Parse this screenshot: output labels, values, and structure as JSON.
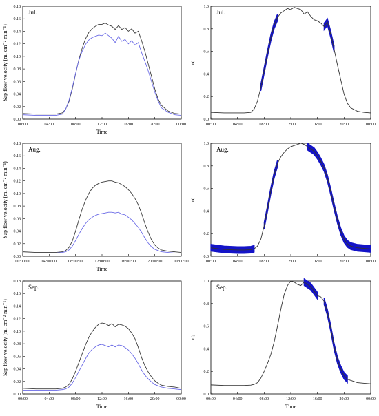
{
  "chart_data": [
    {
      "panel": "Jul. sap flow",
      "type": "line",
      "label": "Jul.",
      "xlabel": "Time",
      "ylabel": "Sap flow velocity (ml cm⁻² min⁻¹)",
      "xlim": [
        0,
        24
      ],
      "ylim": [
        0,
        0.18
      ],
      "xticks": [
        0,
        4,
        8,
        12,
        16,
        20,
        24
      ],
      "xtick_labels": [
        "00:00",
        "04:00",
        "08:00",
        "12:00",
        "16:00",
        "20:00",
        "00:00"
      ],
      "yticks": [
        0,
        0.02,
        0.04,
        0.06,
        0.08,
        0.1,
        0.12,
        0.14,
        0.16,
        0.18
      ],
      "ytick_labels": [
        "0.00",
        "0.02",
        "0.04",
        "0.06",
        "0.08",
        "0.10",
        "0.12",
        "0.14",
        "0.16",
        "0.18"
      ],
      "x": [
        0,
        2,
        4,
        5,
        6,
        6.5,
        7,
        7.5,
        8,
        8.5,
        9,
        9.5,
        10,
        10.5,
        11,
        11.5,
        12,
        12.5,
        13,
        13.5,
        14,
        14.5,
        15,
        15.5,
        16,
        16.5,
        17,
        17.5,
        18,
        18.5,
        19,
        19.5,
        20,
        20.5,
        21,
        22,
        23,
        24
      ],
      "series": [
        {
          "color": "#3a3a3a",
          "values": [
            0.009,
            0.008,
            0.008,
            0.008,
            0.01,
            0.016,
            0.028,
            0.048,
            0.072,
            0.095,
            0.113,
            0.128,
            0.138,
            0.144,
            0.148,
            0.151,
            0.151,
            0.153,
            0.15,
            0.148,
            0.143,
            0.149,
            0.143,
            0.146,
            0.14,
            0.144,
            0.137,
            0.14,
            0.125,
            0.108,
            0.088,
            0.068,
            0.048,
            0.032,
            0.022,
            0.013,
            0.009,
            0.008
          ]
        },
        {
          "color": "#6a6ae6",
          "values": [
            0.007,
            0.006,
            0.006,
            0.006,
            0.008,
            0.016,
            0.03,
            0.05,
            0.073,
            0.094,
            0.108,
            0.119,
            0.126,
            0.13,
            0.132,
            0.134,
            0.133,
            0.137,
            0.133,
            0.129,
            0.122,
            0.132,
            0.124,
            0.127,
            0.12,
            0.125,
            0.118,
            0.122,
            0.106,
            0.092,
            0.077,
            0.06,
            0.043,
            0.029,
            0.018,
            0.011,
            0.007,
            0.006
          ]
        }
      ]
    },
    {
      "panel": "Jul. sigma",
      "type": "line",
      "label": "Jul.",
      "xlabel": "",
      "ylabel": "σᵢ",
      "xlim": [
        0,
        24
      ],
      "ylim": [
        0,
        1
      ],
      "xticks": [
        0,
        4,
        8,
        12,
        16,
        20,
        24
      ],
      "xtick_labels": [
        "00:00",
        "04:00",
        "08:00",
        "12:00",
        "16:00",
        "20:00",
        "00:00"
      ],
      "yticks": [
        0,
        0.2,
        0.4,
        0.6,
        0.8,
        1
      ],
      "ytick_labels": [
        "0.0",
        "0.2",
        "0.4",
        "0.6",
        "0.8",
        "1.0"
      ],
      "x": [
        0,
        2,
        4,
        5,
        6,
        6.5,
        7,
        7.5,
        8,
        8.5,
        9,
        9.5,
        10,
        10.5,
        11,
        11.5,
        12,
        12.5,
        13,
        13.5,
        14,
        14.5,
        15,
        15.5,
        16,
        16.5,
        17,
        17.5,
        18,
        18.5,
        19,
        19.5,
        20,
        20.5,
        21,
        22,
        23,
        24
      ],
      "series": [
        {
          "color": "#333333",
          "values": [
            0.06,
            0.055,
            0.055,
            0.055,
            0.06,
            0.09,
            0.16,
            0.28,
            0.43,
            0.58,
            0.72,
            0.83,
            0.9,
            0.94,
            0.96,
            0.98,
            0.97,
            0.99,
            0.98,
            0.97,
            0.93,
            0.95,
            0.91,
            0.88,
            0.87,
            0.85,
            0.82,
            0.86,
            0.75,
            0.62,
            0.48,
            0.35,
            0.22,
            0.14,
            0.1,
            0.07,
            0.06,
            0.055
          ]
        }
      ],
      "band": {
        "color": "#1414c8",
        "ranges": [
          [
            7.3,
            10.2
          ],
          [
            16.8,
            18.7
          ]
        ],
        "thickness": 0.03
      }
    },
    {
      "panel": "Aug. sap flow",
      "type": "line",
      "label": "Aug.",
      "xlabel": "Time",
      "ylabel": "Sap flow velocity (ml cm⁻² min⁻¹)",
      "xlim": [
        0,
        24
      ],
      "ylim": [
        0,
        0.18
      ],
      "xticks": [
        0,
        4,
        8,
        12,
        16,
        20,
        24
      ],
      "xtick_labels": [
        "00:00:00",
        "04:00:00",
        "08:00:00",
        "12:00:00",
        "16:00:00",
        "20:00:00",
        "00:00:00"
      ],
      "yticks": [
        0,
        0.02,
        0.04,
        0.06,
        0.08,
        0.1,
        0.12,
        0.14,
        0.16,
        0.18
      ],
      "ytick_labels": [
        "0.00",
        "0.02",
        "0.04",
        "0.06",
        "0.08",
        "0.10",
        "0.12",
        "0.14",
        "0.16",
        "0.18"
      ],
      "x": [
        0,
        2,
        4,
        5,
        6,
        6.5,
        7,
        7.5,
        8,
        8.5,
        9,
        9.5,
        10,
        10.5,
        11,
        11.5,
        12,
        12.5,
        13,
        13.5,
        14,
        14.5,
        15,
        15.5,
        16,
        16.5,
        17,
        17.5,
        18,
        18.5,
        19,
        19.5,
        20,
        20.5,
        21,
        22,
        23,
        24
      ],
      "series": [
        {
          "color": "#3a3a3a",
          "values": [
            0.007,
            0.006,
            0.006,
            0.006,
            0.007,
            0.009,
            0.014,
            0.024,
            0.04,
            0.058,
            0.075,
            0.089,
            0.1,
            0.108,
            0.113,
            0.116,
            0.118,
            0.119,
            0.12,
            0.12,
            0.118,
            0.117,
            0.114,
            0.111,
            0.106,
            0.1,
            0.092,
            0.082,
            0.068,
            0.052,
            0.038,
            0.026,
            0.018,
            0.013,
            0.01,
            0.008,
            0.007,
            0.006
          ]
        },
        {
          "color": "#6a6ae6",
          "values": [
            0.005,
            0.005,
            0.005,
            0.005,
            0.006,
            0.007,
            0.01,
            0.016,
            0.025,
            0.035,
            0.044,
            0.052,
            0.058,
            0.062,
            0.065,
            0.067,
            0.068,
            0.069,
            0.07,
            0.07,
            0.069,
            0.07,
            0.067,
            0.066,
            0.062,
            0.058,
            0.052,
            0.046,
            0.038,
            0.029,
            0.021,
            0.015,
            0.011,
            0.009,
            0.007,
            0.006,
            0.005,
            0.005
          ]
        }
      ]
    },
    {
      "panel": "Aug. sigma",
      "type": "line",
      "label": "Aug.",
      "xlabel": "",
      "ylabel": "σᵢ",
      "xlim": [
        0,
        24
      ],
      "ylim": [
        0,
        1
      ],
      "xticks": [
        0,
        4,
        8,
        12,
        16,
        20,
        24
      ],
      "xtick_labels": [
        "00:00",
        "04:00",
        "08:00",
        "12:00",
        "16:00",
        "20:00",
        "00:00"
      ],
      "yticks": [
        0,
        0.2,
        0.4,
        0.6,
        0.8,
        1
      ],
      "ytick_labels": [
        "0.0",
        "0.2",
        "0.4",
        "0.6",
        "0.8",
        "1.0"
      ],
      "x": [
        0,
        2,
        4,
        5,
        6,
        6.5,
        7,
        7.5,
        8,
        8.5,
        9,
        9.5,
        10,
        10.5,
        11,
        11.5,
        12,
        12.5,
        13,
        13.5,
        14,
        14.5,
        15,
        15.5,
        16,
        16.5,
        17,
        17.5,
        18,
        18.5,
        19,
        19.5,
        20,
        20.5,
        21,
        22,
        23,
        24
      ],
      "series": [
        {
          "color": "#333333",
          "values": [
            0.075,
            0.06,
            0.055,
            0.055,
            0.058,
            0.066,
            0.09,
            0.15,
            0.27,
            0.42,
            0.58,
            0.72,
            0.82,
            0.88,
            0.92,
            0.95,
            0.97,
            0.98,
            0.99,
            1.0,
            0.99,
            0.97,
            0.95,
            0.93,
            0.89,
            0.84,
            0.78,
            0.69,
            0.57,
            0.44,
            0.32,
            0.22,
            0.15,
            0.11,
            0.09,
            0.075,
            0.07,
            0.065
          ]
        }
      ],
      "band": {
        "color": "#1414c8",
        "ranges": [
          [
            0,
            6.8
          ],
          [
            7.8,
            10.2
          ],
          [
            14.5,
            24
          ]
        ],
        "thickness": 0.03
      }
    },
    {
      "panel": "Sep. sap flow",
      "type": "line",
      "label": "Sep.",
      "xlabel": "Time",
      "ylabel": "Sap flow velocity (ml cm⁻² min⁻¹)",
      "xlim": [
        0,
        24
      ],
      "ylim": [
        0,
        0.18
      ],
      "xticks": [
        0,
        4,
        8,
        12,
        16,
        20,
        24
      ],
      "xtick_labels": [
        "00:00",
        "04:00",
        "08:00",
        "12:00",
        "16:00",
        "20:00",
        "00:00"
      ],
      "yticks": [
        0,
        0.02,
        0.04,
        0.06,
        0.08,
        0.1,
        0.12,
        0.14,
        0.16,
        0.18
      ],
      "ytick_labels": [
        "0.00",
        "0.02",
        "0.04",
        "0.06",
        "0.08",
        "0.10",
        "0.12",
        "0.14",
        "0.16",
        "0.18"
      ],
      "x": [
        0,
        2,
        4,
        5,
        6,
        6.5,
        7,
        7.5,
        8,
        8.5,
        9,
        9.5,
        10,
        10.5,
        11,
        11.5,
        12,
        12.5,
        13,
        13.5,
        14,
        14.5,
        15,
        15.5,
        16,
        16.5,
        17,
        17.5,
        18,
        18.5,
        19,
        19.5,
        20,
        20.5,
        21,
        22,
        23,
        24
      ],
      "series": [
        {
          "color": "#3a3a3a",
          "values": [
            0.009,
            0.008,
            0.008,
            0.008,
            0.009,
            0.011,
            0.015,
            0.024,
            0.036,
            0.05,
            0.064,
            0.078,
            0.09,
            0.099,
            0.106,
            0.111,
            0.113,
            0.112,
            0.109,
            0.112,
            0.107,
            0.111,
            0.11,
            0.108,
            0.104,
            0.097,
            0.088,
            0.074,
            0.058,
            0.045,
            0.035,
            0.027,
            0.021,
            0.017,
            0.014,
            0.012,
            0.011,
            0.009
          ]
        },
        {
          "color": "#6a6ae6",
          "values": [
            0.006,
            0.006,
            0.006,
            0.006,
            0.007,
            0.008,
            0.011,
            0.017,
            0.026,
            0.036,
            0.046,
            0.056,
            0.065,
            0.071,
            0.075,
            0.078,
            0.079,
            0.077,
            0.075,
            0.078,
            0.075,
            0.078,
            0.077,
            0.074,
            0.07,
            0.064,
            0.057,
            0.048,
            0.038,
            0.03,
            0.024,
            0.019,
            0.015,
            0.013,
            0.011,
            0.009,
            0.008,
            0.007
          ]
        }
      ]
    },
    {
      "panel": "Sep. sigma",
      "type": "line",
      "label": "Sep.",
      "xlabel": "Time",
      "ylabel": "σᵢ",
      "xlim": [
        0,
        24
      ],
      "ylim": [
        0,
        1
      ],
      "xticks": [
        0,
        4,
        8,
        12,
        16,
        20,
        24
      ],
      "xtick_labels": [
        "00:00",
        "04:00",
        "08:00",
        "12:00",
        "16:00",
        "20:00",
        "00:00"
      ],
      "yticks": [
        0,
        0.2,
        0.4,
        0.6,
        0.8,
        1
      ],
      "ytick_labels": [
        "0.0",
        "0.2",
        "0.4",
        "0.6",
        "0.8",
        "1.0"
      ],
      "x": [
        0,
        2,
        4,
        5,
        6,
        6.5,
        7,
        7.5,
        8,
        8.5,
        9,
        9.5,
        10,
        10.5,
        11,
        11.5,
        12,
        12.5,
        13,
        13.5,
        14,
        14.5,
        15,
        15.5,
        16,
        16.5,
        17,
        17.5,
        18,
        18.5,
        19,
        19.5,
        20,
        20.5,
        21,
        22,
        23,
        24
      ],
      "series": [
        {
          "color": "#333333",
          "values": [
            0.08,
            0.075,
            0.075,
            0.075,
            0.078,
            0.085,
            0.1,
            0.14,
            0.2,
            0.27,
            0.35,
            0.46,
            0.6,
            0.75,
            0.88,
            0.96,
            1.0,
            0.99,
            0.97,
            0.96,
            0.99,
            0.97,
            0.95,
            0.91,
            0.87,
            0.86,
            0.82,
            0.72,
            0.58,
            0.42,
            0.3,
            0.22,
            0.16,
            0.13,
            0.12,
            0.1,
            0.095,
            0.09
          ]
        }
      ],
      "band": {
        "color": "#1414c8",
        "ranges": [
          [
            13.7,
            16
          ],
          [
            17,
            20.8
          ]
        ],
        "thickness": 0.03
      }
    }
  ]
}
